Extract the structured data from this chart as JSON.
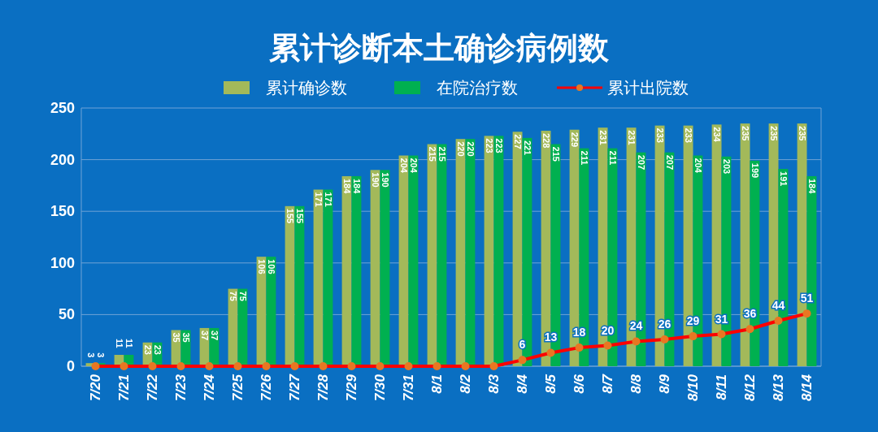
{
  "chart_data": {
    "type": "bar",
    "title": "累计诊断本土确诊病例数",
    "categories": [
      "7/20",
      "7/21",
      "7/22",
      "7/23",
      "7/24",
      "7/25",
      "7/26",
      "7/27",
      "7/28",
      "7/29",
      "7/30",
      "7/31",
      "8/1",
      "8/2",
      "8/3",
      "8/4",
      "8/5",
      "8/6",
      "8/7",
      "8/8",
      "8/9",
      "8/10",
      "8/11",
      "8/12",
      "8/13",
      "8/14"
    ],
    "series": [
      {
        "name": "累计确诊数",
        "color": "#a3b95a",
        "values": [
          3,
          11,
          23,
          35,
          37,
          75,
          106,
          155,
          171,
          184,
          190,
          204,
          215,
          220,
          223,
          227,
          228,
          229,
          231,
          231,
          233,
          233,
          234,
          235,
          235,
          235
        ],
        "value_labels": [
          "3",
          "11",
          "23",
          "35",
          "37",
          "75",
          "106",
          "155",
          "171",
          "184",
          "190",
          "204",
          "215",
          "220",
          "223",
          "227",
          "228",
          "229",
          "231",
          "231",
          "233",
          "233",
          "234",
          "235",
          "235",
          "235"
        ]
      },
      {
        "name": "在院治疗数",
        "color": "#00b050",
        "values": [
          3,
          11,
          23,
          35,
          37,
          75,
          106,
          155,
          171,
          184,
          190,
          204,
          215,
          220,
          223,
          221,
          215,
          211,
          211,
          207,
          207,
          204,
          203,
          199,
          191,
          184
        ],
        "value_labels": [
          "3",
          "11",
          "23",
          "35",
          "37",
          "75",
          "106",
          "155",
          "171",
          "184",
          "190",
          "204",
          "215",
          "220",
          "223",
          "221",
          "215",
          "211",
          "211",
          "207",
          "207",
          "204",
          "203",
          "199",
          "191",
          "184"
        ]
      },
      {
        "name": "累计出院数",
        "type": "line",
        "color": "#ff0000",
        "values": [
          0,
          0,
          0,
          0,
          0,
          0,
          0,
          0,
          0,
          0,
          0,
          0,
          0,
          0,
          0,
          6,
          13,
          18,
          20,
          24,
          26,
          29,
          31,
          36,
          44,
          51
        ],
        "value_labels": [
          null,
          null,
          null,
          null,
          null,
          null,
          null,
          null,
          null,
          null,
          null,
          null,
          null,
          null,
          null,
          "6",
          "13",
          "18",
          "20",
          "24",
          "26",
          "29",
          "31",
          "36",
          "44",
          "51"
        ]
      }
    ],
    "ylim": [
      0,
      250
    ],
    "yticks": [
      0,
      50,
      100,
      150,
      200,
      250
    ],
    "grid": "y",
    "legend": "top",
    "marker": "circle",
    "line_style": "solid"
  }
}
